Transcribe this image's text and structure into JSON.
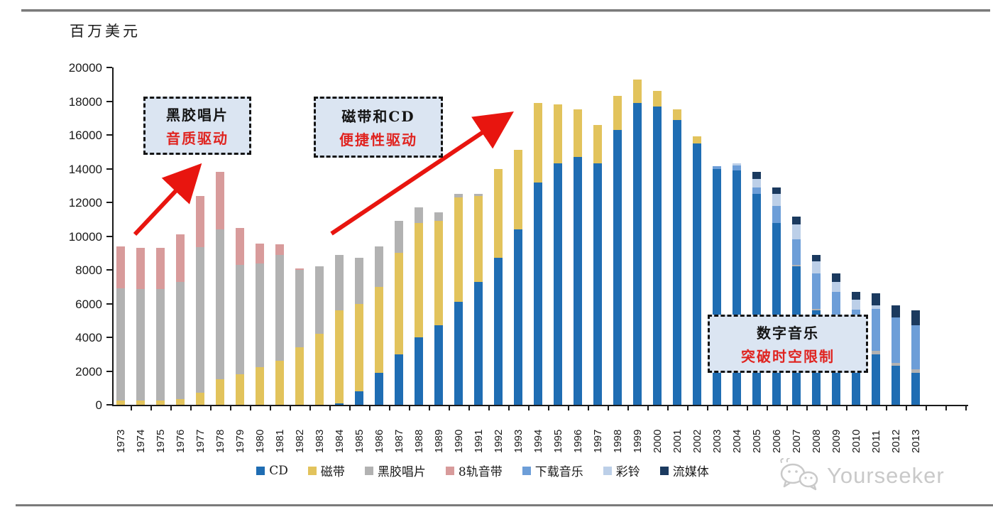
{
  "page": {
    "unit_label": "百万美元",
    "watermark_text": "Yourseeker"
  },
  "annotations": [
    {
      "line1": "黑胶唱片",
      "line2": "音质驱动"
    },
    {
      "line1": "磁带和CD",
      "line2": "便捷性驱动"
    },
    {
      "line1": "数字音乐",
      "line2": "突破时空限制"
    }
  ],
  "chart_data": {
    "type": "bar",
    "stacked": true,
    "title": "",
    "unit": "百万美元",
    "ylabel": "百万美元",
    "xlabel": "",
    "ylim": [
      0,
      20000
    ],
    "ytick_step": 2000,
    "grid": false,
    "legend_position": "bottom",
    "categories": [
      "1973",
      "1974",
      "1975",
      "1976",
      "1977",
      "1978",
      "1979",
      "1980",
      "1981",
      "1982",
      "1983",
      "1984",
      "1985",
      "1986",
      "1987",
      "1988",
      "1989",
      "1990",
      "1991",
      "1992",
      "1993",
      "1994",
      "1995",
      "1996",
      "1997",
      "1998",
      "1999",
      "2000",
      "2001",
      "2002",
      "2003",
      "2004",
      "2005",
      "2006",
      "2007",
      "2008",
      "2009",
      "2010",
      "2011",
      "2012",
      "2013"
    ],
    "series": [
      {
        "name": "CD",
        "color": "#1F6DB3",
        "values": [
          0,
          0,
          0,
          0,
          0,
          0,
          0,
          0,
          0,
          0,
          0,
          100,
          800,
          1900,
          3000,
          4000,
          4700,
          6100,
          7300,
          8700,
          10400,
          13200,
          14300,
          14700,
          14300,
          16300,
          17900,
          17700,
          16900,
          15500,
          14000,
          13900,
          12500,
          10800,
          8200,
          5600,
          5100,
          3400,
          3000,
          2300,
          1900
        ]
      },
      {
        "name": "磁带",
        "color": "#E2C35C",
        "values": [
          250,
          250,
          250,
          350,
          700,
          1500,
          1800,
          2250,
          2600,
          3400,
          4200,
          5500,
          5200,
          5100,
          6000,
          6800,
          6200,
          6200,
          5100,
          5300,
          4700,
          4700,
          3500,
          2800,
          2300,
          2000,
          1400,
          900,
          600,
          400,
          0,
          0,
          0,
          0,
          0,
          0,
          0,
          0,
          0,
          0,
          0
        ]
      },
      {
        "name": "黑胶唱片",
        "color": "#B2B2B2",
        "values": [
          6650,
          6600,
          6600,
          6950,
          8650,
          8900,
          6500,
          6150,
          6300,
          4600,
          4000,
          3300,
          2700,
          2400,
          1900,
          900,
          500,
          200,
          100,
          0,
          0,
          0,
          0,
          0,
          0,
          0,
          0,
          0,
          0,
          0,
          0,
          0,
          0,
          0,
          100,
          100,
          100,
          100,
          200,
          200,
          200
        ]
      },
      {
        "name": "8轨音带",
        "color": "#D89B9B",
        "values": [
          2500,
          2450,
          2450,
          2800,
          3050,
          3400,
          2200,
          1150,
          600,
          100,
          0,
          0,
          0,
          0,
          0,
          0,
          0,
          0,
          0,
          0,
          0,
          0,
          0,
          0,
          0,
          0,
          0,
          0,
          0,
          0,
          0,
          0,
          0,
          0,
          0,
          0,
          0,
          0,
          0,
          0,
          0
        ]
      },
      {
        "name": "下载音乐",
        "color": "#6D9ED8",
        "values": [
          0,
          0,
          0,
          0,
          0,
          0,
          0,
          0,
          0,
          0,
          0,
          0,
          0,
          0,
          0,
          0,
          0,
          0,
          0,
          0,
          0,
          0,
          0,
          0,
          0,
          0,
          0,
          0,
          0,
          0,
          150,
          300,
          400,
          1000,
          1500,
          2100,
          1500,
          2150,
          2500,
          2700,
          2600
        ]
      },
      {
        "name": "彩铃",
        "color": "#BCCFE8",
        "values": [
          0,
          0,
          0,
          0,
          0,
          0,
          0,
          0,
          0,
          0,
          0,
          0,
          0,
          0,
          0,
          0,
          0,
          0,
          0,
          0,
          0,
          0,
          0,
          0,
          0,
          0,
          0,
          0,
          0,
          0,
          0,
          100,
          500,
          700,
          900,
          700,
          600,
          600,
          200,
          0,
          0
        ]
      },
      {
        "name": "流媒体",
        "color": "#1B3A5F",
        "values": [
          0,
          0,
          0,
          0,
          0,
          0,
          0,
          0,
          0,
          0,
          0,
          0,
          0,
          0,
          0,
          0,
          0,
          0,
          0,
          0,
          0,
          0,
          0,
          0,
          0,
          0,
          0,
          0,
          0,
          0,
          0,
          0,
          400,
          400,
          450,
          400,
          500,
          450,
          700,
          700,
          900
        ]
      }
    ]
  }
}
